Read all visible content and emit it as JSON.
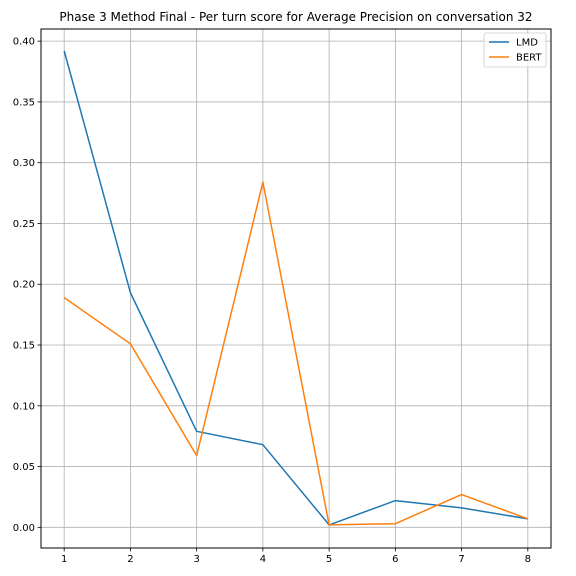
{
  "chart_data": {
    "type": "line",
    "title": "Phase 3 Method Final - Per turn score for Average Precision on conversation 32",
    "xlabel": "",
    "ylabel": "",
    "x": [
      1,
      2,
      3,
      4,
      5,
      6,
      7,
      8
    ],
    "xlim": [
      0.65,
      8.35
    ],
    "ylim": [
      -0.017,
      0.41
    ],
    "x_ticks": [
      "1",
      "2",
      "3",
      "4",
      "5",
      "6",
      "7",
      "8"
    ],
    "y_ticks": [
      "0.00",
      "0.05",
      "0.10",
      "0.15",
      "0.20",
      "0.25",
      "0.30",
      "0.35",
      "0.40"
    ],
    "grid": true,
    "legend_position": "top-right",
    "series": [
      {
        "name": "LMD",
        "color": "#1f77b4",
        "values": [
          0.392,
          0.193,
          0.079,
          0.068,
          0.002,
          0.022,
          0.016,
          0.007
        ]
      },
      {
        "name": "BERT",
        "color": "#ff7f0e",
        "values": [
          0.189,
          0.151,
          0.059,
          0.284,
          0.002,
          0.003,
          0.027,
          0.007
        ]
      }
    ]
  }
}
